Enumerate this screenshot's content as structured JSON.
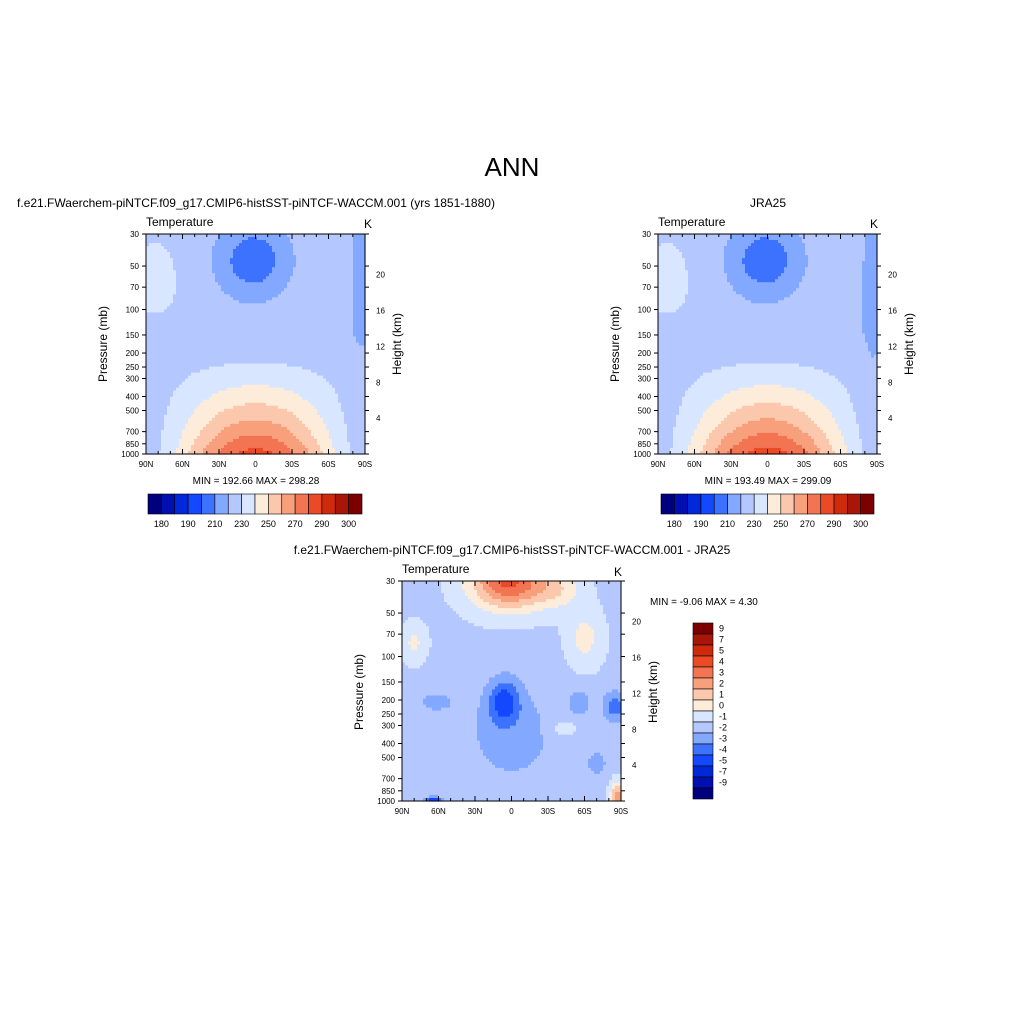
{
  "page": {
    "title": "ANN",
    "colors": {
      "background": "#ffffff",
      "text": "#000000"
    }
  },
  "palettes": {
    "temp": [
      "#00007f",
      "#0010b0",
      "#0028d8",
      "#1448ff",
      "#3c72ff",
      "#82a8ff",
      "#b4c8ff",
      "#d8e6ff",
      "#fdecd9",
      "#fcc8ad",
      "#f8a07c",
      "#f37452",
      "#eb4a26",
      "#cf2a0c",
      "#a8160a",
      "#7d0000"
    ],
    "diff": [
      "#00007f",
      "#0010b0",
      "#0028d8",
      "#1448ff",
      "#3c72ff",
      "#82a8ff",
      "#b4c8ff",
      "#d8e6ff",
      "#fdecd9",
      "#fcc8ad",
      "#f8a07c",
      "#f37452",
      "#eb4a26",
      "#cf2a0c",
      "#a8160a",
      "#7d0000"
    ]
  },
  "chart_data": [
    {
      "id": "model",
      "type": "heatmap",
      "title": "f.e21.FWaerchem-piNTCF.f09_g17.CMIP6-histSST-piNTCF-WACCM.001 (yrs 1851-1880)",
      "left_label": "Temperature",
      "right_label": "K",
      "xlabel": "",
      "ylabel": "Pressure (mb)",
      "y2label": "Height (km)",
      "xlim": [
        90,
        -90
      ],
      "ylim": [
        1000,
        30
      ],
      "yscale": "log",
      "x_ticks": [
        {
          "v": 90,
          "t": "90N"
        },
        {
          "v": 60,
          "t": "60N"
        },
        {
          "v": 30,
          "t": "30N"
        },
        {
          "v": 0,
          "t": "0"
        },
        {
          "v": -30,
          "t": "30S"
        },
        {
          "v": -60,
          "t": "60S"
        },
        {
          "v": -90,
          "t": "90S"
        }
      ],
      "y_ticks": [
        1000,
        850,
        700,
        500,
        400,
        300,
        250,
        200,
        150,
        100,
        70,
        50,
        30
      ],
      "y2_ticks": [
        4,
        8,
        12,
        16,
        20
      ],
      "stats": "MIN = 192.66  MAX = 298.28",
      "min": 192.66,
      "max": 298.28,
      "colorbar": {
        "orientation": "horizontal",
        "levels": [
          180,
          190,
          200,
          210,
          220,
          230,
          240,
          250,
          260,
          270,
          280,
          290,
          300
        ],
        "labels": [
          "180",
          "190",
          "210",
          "230",
          "250",
          "270",
          "290",
          "300"
        ],
        "boxes": 16
      }
    },
    {
      "id": "obs",
      "type": "heatmap",
      "title": "JRA25",
      "left_label": "Temperature",
      "right_label": "K",
      "xlabel": "",
      "ylabel": "Pressure (mb)",
      "y2label": "Height (km)",
      "xlim": [
        90,
        -90
      ],
      "ylim": [
        1000,
        30
      ],
      "yscale": "log",
      "x_ticks": [
        {
          "v": 90,
          "t": "90N"
        },
        {
          "v": 60,
          "t": "60N"
        },
        {
          "v": 30,
          "t": "30N"
        },
        {
          "v": 0,
          "t": "0"
        },
        {
          "v": -30,
          "t": "30S"
        },
        {
          "v": -60,
          "t": "60S"
        },
        {
          "v": -90,
          "t": "90S"
        }
      ],
      "y_ticks": [
        1000,
        850,
        700,
        500,
        400,
        300,
        250,
        200,
        150,
        100,
        70,
        50,
        30
      ],
      "y2_ticks": [
        4,
        8,
        12,
        16,
        20
      ],
      "stats": "MIN = 193.49  MAX = 299.09",
      "min": 193.49,
      "max": 299.09,
      "colorbar": {
        "orientation": "horizontal",
        "levels": [
          180,
          190,
          200,
          210,
          220,
          230,
          240,
          250,
          260,
          270,
          280,
          290,
          300
        ],
        "labels": [
          "180",
          "190",
          "210",
          "230",
          "250",
          "270",
          "290",
          "300"
        ],
        "boxes": 16
      }
    },
    {
      "id": "diff",
      "type": "heatmap",
      "title": "f.e21.FWaerchem-piNTCF.f09_g17.CMIP6-histSST-piNTCF-WACCM.001 - JRA25",
      "left_label": "Temperature",
      "right_label": "K",
      "xlabel": "",
      "ylabel": "Pressure (mb)",
      "y2label": "Height (km)",
      "xlim": [
        90,
        -90
      ],
      "ylim": [
        1000,
        30
      ],
      "yscale": "log",
      "x_ticks": [
        {
          "v": 90,
          "t": "90N"
        },
        {
          "v": 60,
          "t": "60N"
        },
        {
          "v": 30,
          "t": "30N"
        },
        {
          "v": 0,
          "t": "0"
        },
        {
          "v": -30,
          "t": "30S"
        },
        {
          "v": -60,
          "t": "60S"
        },
        {
          "v": -90,
          "t": "90S"
        }
      ],
      "y_ticks": [
        1000,
        850,
        700,
        500,
        400,
        300,
        250,
        200,
        150,
        100,
        70,
        50,
        30
      ],
      "y2_ticks": [
        4,
        8,
        12,
        16,
        20
      ],
      "stats": "MIN =  -9.06  MAX =   4.30",
      "min": -9.06,
      "max": 4.3,
      "colorbar": {
        "orientation": "vertical",
        "levels": [
          -9,
          -7,
          -5,
          -4,
          -3,
          -2,
          -1,
          0,
          1,
          2,
          3,
          4,
          5,
          7,
          9
        ],
        "labels": [
          "9",
          "7",
          "5",
          "4",
          "3",
          "2",
          "1",
          "0",
          "-1",
          "-2",
          "-3",
          "-4",
          "-5",
          "-7",
          "-9"
        ],
        "boxes": 16
      }
    }
  ]
}
